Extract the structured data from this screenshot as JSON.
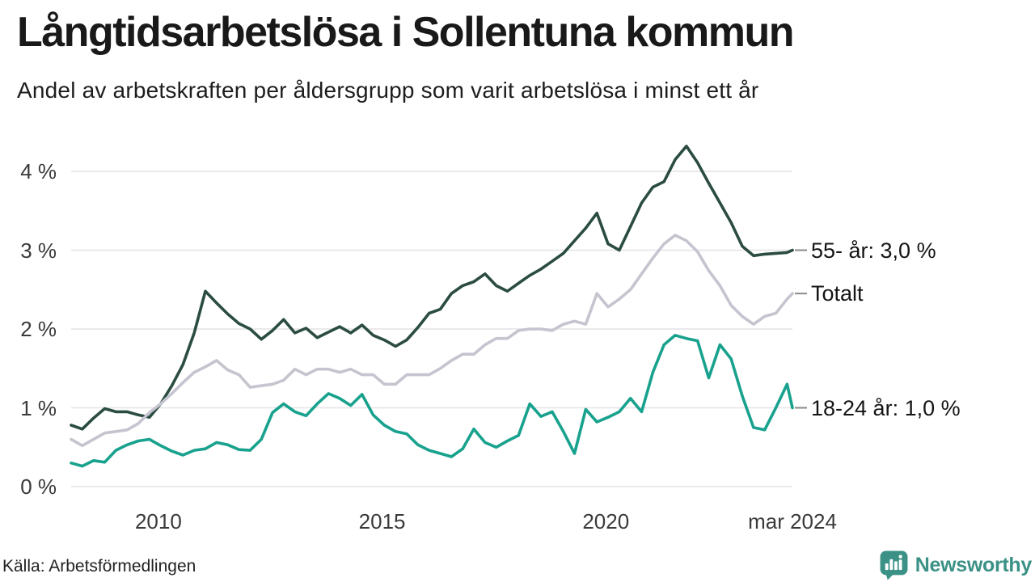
{
  "title": "Långtidsarbetslösa i Sollentuna kommun",
  "subtitle": "Andel av arbetskraften per åldersgrupp som varit arbetslösa i minst ett år",
  "source": "Källa: Arbetsförmedlingen",
  "logo": {
    "text": "Newsworthy",
    "color": "#3b9186",
    "icon": "newsworthy-pin-bar-chart-icon"
  },
  "chart_data": {
    "type": "line",
    "x_axis": "time, monthly series from early 2008 to mar 2024 (values sampled quarterly)",
    "x_start": 2008.05,
    "x_step": 0.25,
    "x_end": 2024.17,
    "ylim": [
      0,
      4.5
    ],
    "grid": true,
    "grid_color": "#e4e4e8",
    "legend_position": "right-end-labels",
    "yticks": [
      {
        "value": 0,
        "label": "0 %"
      },
      {
        "value": 1,
        "label": "1 %"
      },
      {
        "value": 2,
        "label": "2 %"
      },
      {
        "value": 3,
        "label": "3 %"
      },
      {
        "value": 4,
        "label": "4 %"
      }
    ],
    "xticks": [
      {
        "t": 2010,
        "label": "2010"
      },
      {
        "t": 2015,
        "label": "2015"
      },
      {
        "t": 2020,
        "label": "2020"
      },
      {
        "t": 2024.17,
        "label": "mar 2024"
      }
    ],
    "series": [
      {
        "id": "55-ar",
        "name": "55- år",
        "label": "55- år: 3,0 %",
        "last_value": 3.0,
        "color": "#2b4c41",
        "values": [
          0.78,
          0.73,
          0.87,
          0.99,
          0.95,
          0.95,
          0.91,
          0.88,
          1.05,
          1.28,
          1.55,
          1.95,
          2.48,
          2.33,
          2.19,
          2.07,
          2.0,
          1.87,
          1.98,
          2.12,
          1.95,
          2.01,
          1.89,
          1.96,
          2.03,
          1.95,
          2.05,
          1.92,
          1.86,
          1.78,
          1.86,
          2.02,
          2.2,
          2.25,
          2.45,
          2.55,
          2.6,
          2.7,
          2.55,
          2.48,
          2.58,
          2.68,
          2.76,
          2.86,
          2.96,
          3.12,
          3.28,
          3.47,
          3.08,
          3.0,
          3.3,
          3.6,
          3.8,
          3.87,
          4.15,
          4.32,
          4.11,
          3.85,
          3.6,
          3.35,
          3.05,
          2.93,
          2.95,
          2.96,
          2.97,
          3.0
        ]
      },
      {
        "id": "totalt",
        "name": "Totalt",
        "label": "Totalt",
        "last_value": 2.45,
        "color": "#c5c4cf",
        "values": [
          0.6,
          0.52,
          0.6,
          0.68,
          0.7,
          0.72,
          0.8,
          0.94,
          1.05,
          1.18,
          1.32,
          1.45,
          1.52,
          1.6,
          1.48,
          1.42,
          1.26,
          1.28,
          1.3,
          1.35,
          1.49,
          1.42,
          1.49,
          1.49,
          1.45,
          1.49,
          1.42,
          1.42,
          1.3,
          1.3,
          1.42,
          1.42,
          1.42,
          1.5,
          1.6,
          1.68,
          1.68,
          1.8,
          1.88,
          1.88,
          1.98,
          2.0,
          2.0,
          1.98,
          2.06,
          2.1,
          2.06,
          2.45,
          2.28,
          2.38,
          2.5,
          2.7,
          2.9,
          3.08,
          3.19,
          3.12,
          2.98,
          2.74,
          2.55,
          2.3,
          2.16,
          2.06,
          2.16,
          2.2,
          2.38,
          2.45
        ]
      },
      {
        "id": "18-24-ar",
        "name": "18-24 år",
        "label": "18-24 år: 1,0 %",
        "last_value": 1.0,
        "color": "#18a28e",
        "values": [
          0.3,
          0.26,
          0.33,
          0.31,
          0.46,
          0.53,
          0.58,
          0.6,
          0.52,
          0.45,
          0.4,
          0.46,
          0.48,
          0.56,
          0.53,
          0.47,
          0.46,
          0.6,
          0.94,
          1.05,
          0.95,
          0.9,
          1.05,
          1.18,
          1.12,
          1.03,
          1.17,
          0.91,
          0.78,
          0.7,
          0.67,
          0.53,
          0.46,
          0.42,
          0.38,
          0.48,
          0.73,
          0.56,
          0.5,
          0.58,
          0.65,
          1.05,
          0.89,
          0.95,
          0.7,
          0.42,
          0.98,
          0.82,
          0.88,
          0.95,
          1.12,
          0.95,
          1.45,
          1.8,
          1.92,
          1.88,
          1.85,
          1.38,
          1.8,
          1.62,
          1.15,
          0.75,
          0.72,
          1.0,
          1.3,
          1.0
        ]
      }
    ]
  }
}
